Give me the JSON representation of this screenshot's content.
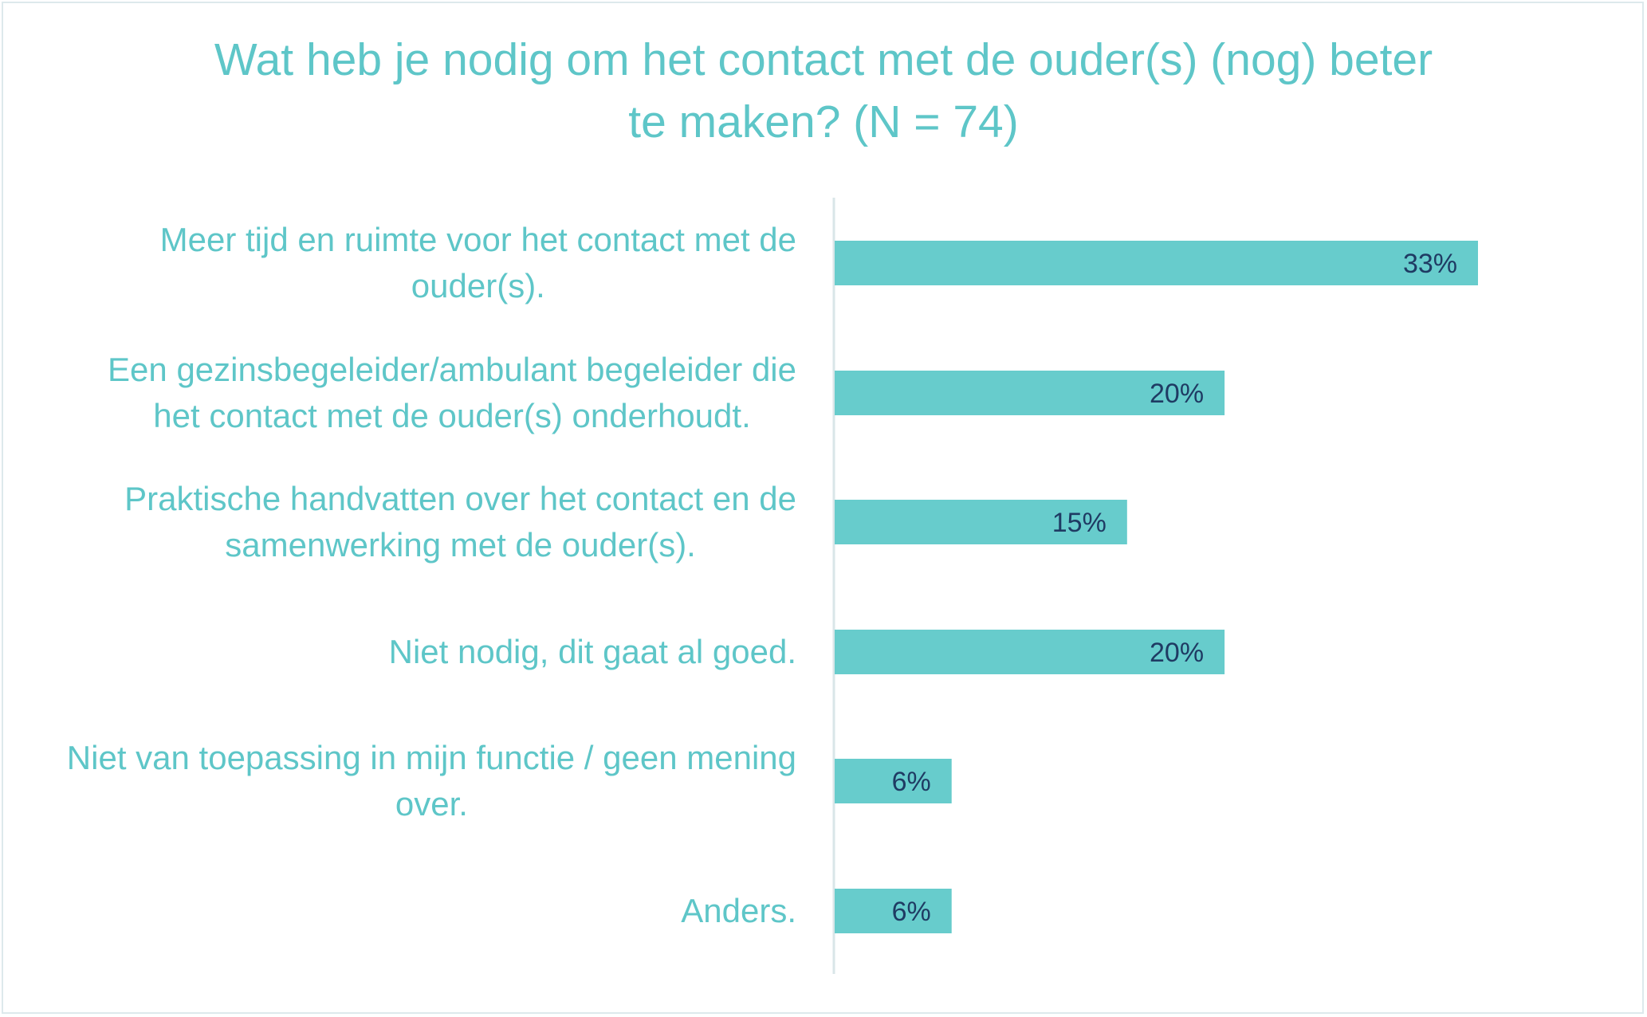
{
  "chart_data": {
    "type": "bar",
    "orientation": "horizontal",
    "title_lines": [
      "Wat heb je nodig om het contact met de ouder(s) (nog) beter",
      "te maken? (N = 74)"
    ],
    "categories": [
      [
        "Meer tijd en ruimte voor het contact met de",
        "ouder(s)."
      ],
      [
        "Een gezinsbegeleider/ambulant begeleider die",
        "het contact met de ouder(s) onderhoudt."
      ],
      [
        "Praktische handvatten over het contact en de",
        "samenwerking met de ouder(s)."
      ],
      [
        "Niet nodig, dit gaat al goed."
      ],
      [
        "Niet van toepassing in mijn functie / geen mening",
        "over."
      ],
      [
        "Anders."
      ]
    ],
    "values": [
      33,
      20,
      15,
      20,
      6,
      6
    ],
    "value_labels": [
      "33%",
      "20%",
      "15%",
      "20%",
      "6%",
      "6%"
    ],
    "unit": "%",
    "xlim": [
      0,
      40
    ],
    "grid": false,
    "legend": "none",
    "colors": {
      "bar": "#67cccc",
      "category_text": "#5ec6c8",
      "value_text": "#1f3b63",
      "axis": "#d9e6e8",
      "title": "#5ec6c8",
      "border": "#dde9ec"
    }
  }
}
